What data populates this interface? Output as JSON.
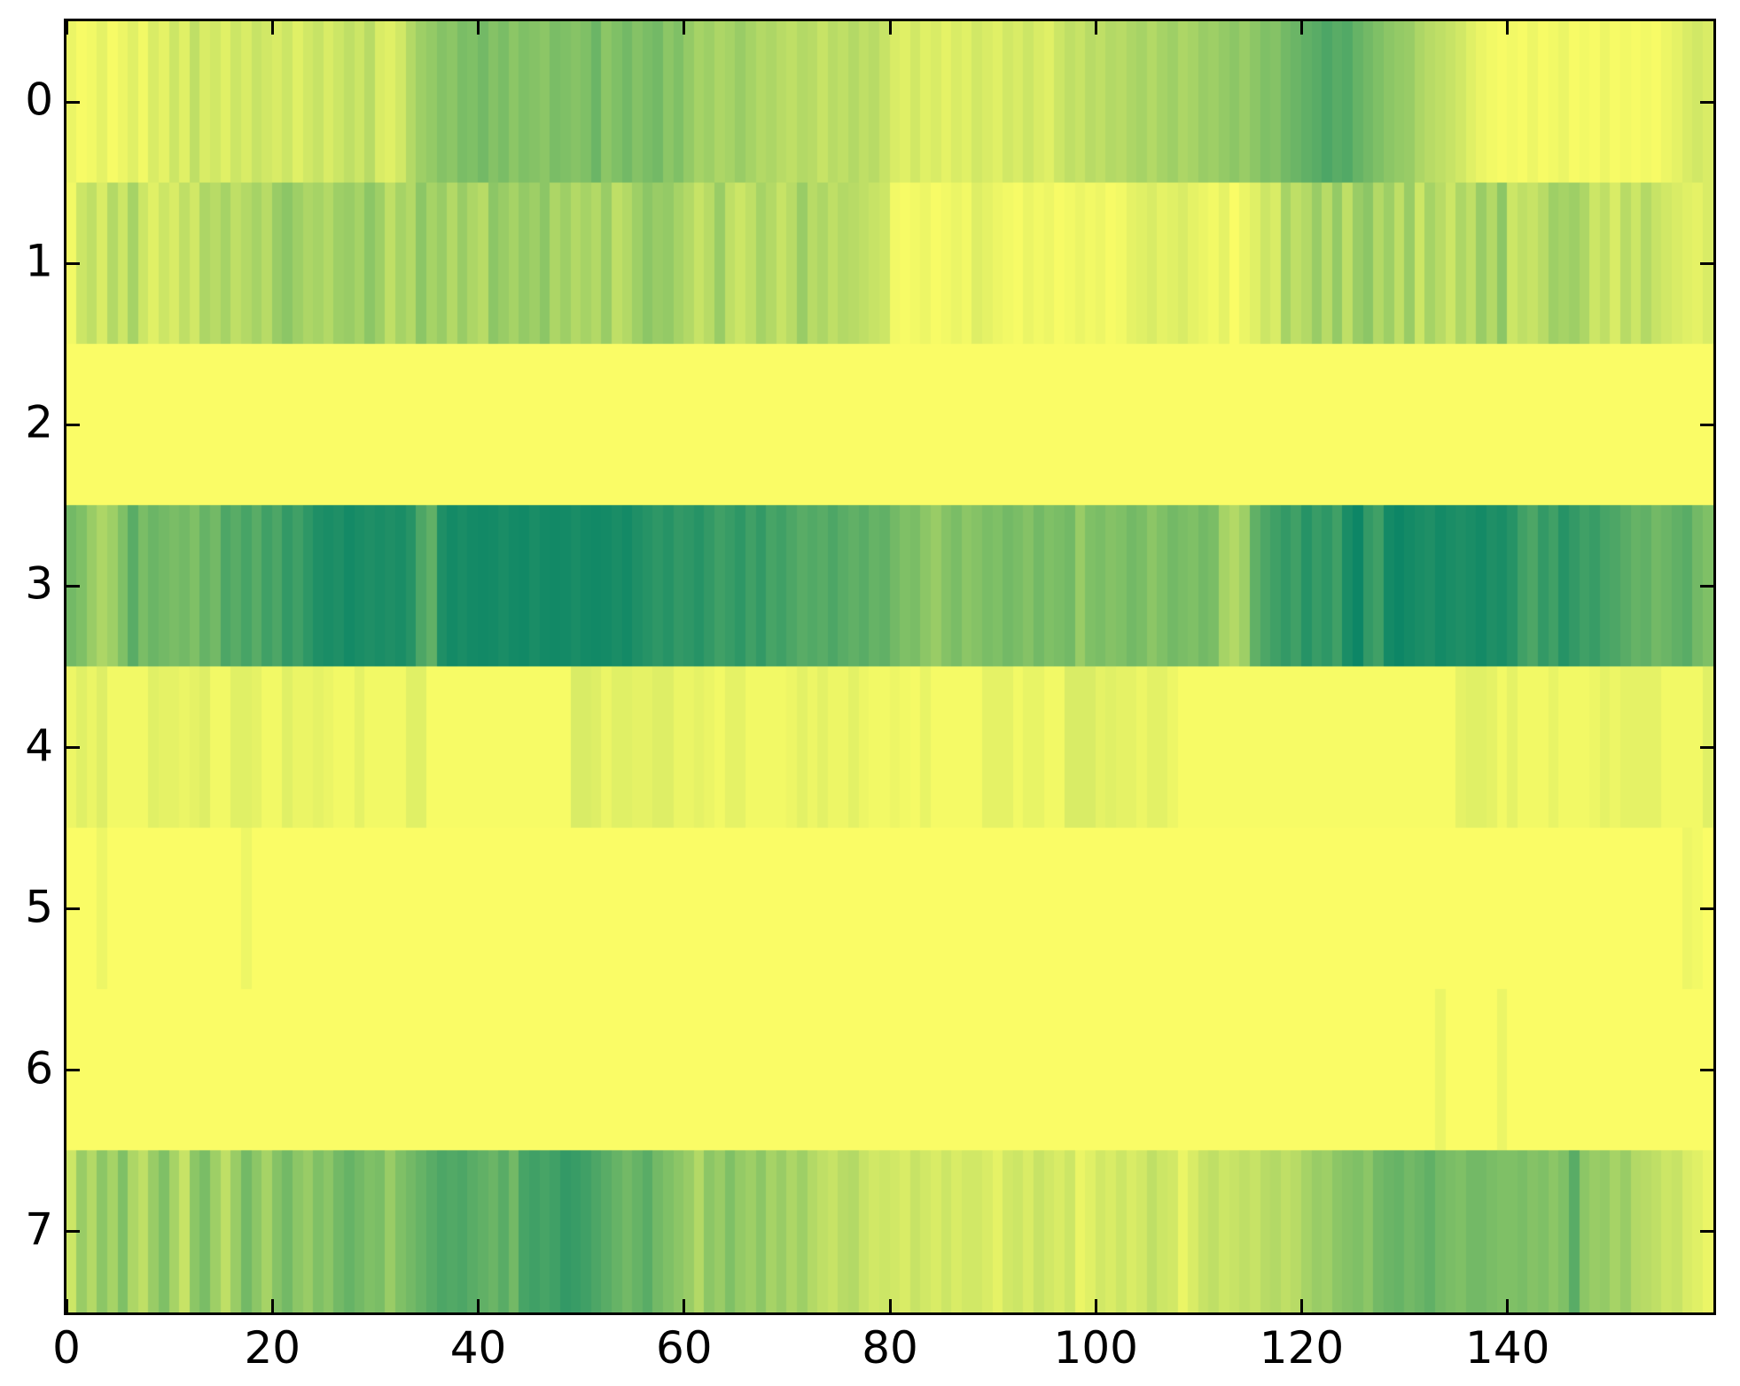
{
  "figure": {
    "background": "#ffffff",
    "axes_edge_color": "#000000",
    "tick_color": "#000000"
  },
  "chart_data": {
    "type": "heatmap",
    "title": "",
    "xlabel": "",
    "ylabel": "",
    "grid": false,
    "legend": "none",
    "rows": 8,
    "cols": 160,
    "x_axis": {
      "range": [
        0,
        160
      ],
      "ticks": [
        0,
        20,
        40,
        60,
        80,
        100,
        120,
        140
      ],
      "tick_labels": [
        "0",
        "20",
        "40",
        "60",
        "80",
        "100",
        "120",
        "140"
      ],
      "tick_direction": "in"
    },
    "y_axis": {
      "range": [
        0,
        8
      ],
      "ticks": [
        0,
        1,
        2,
        3,
        4,
        5,
        6,
        7
      ],
      "tick_labels": [
        "0",
        "1",
        "2",
        "3",
        "4",
        "5",
        "6",
        "7"
      ],
      "tick_direction": "in",
      "row0_at_top": true
    },
    "colormap": {
      "name": "summer",
      "low_value_color": "#008066",
      "high_value_color": "#ffff66",
      "formula": "rgb(round(2.55*v), round(128+1.27*v), 102) for v in 0..100"
    },
    "value_scale": "0 = darkest teal-green, 100 = brightest yellow",
    "values": [
      [
        92,
        97,
        95,
        90,
        97,
        93,
        88,
        95,
        85,
        90,
        80,
        88,
        75,
        85,
        82,
        88,
        80,
        85,
        78,
        82,
        85,
        80,
        88,
        82,
        78,
        85,
        80,
        75,
        80,
        72,
        85,
        88,
        82,
        70,
        62,
        58,
        52,
        55,
        48,
        50,
        45,
        52,
        48,
        55,
        50,
        52,
        55,
        48,
        50,
        53,
        50,
        42,
        55,
        50,
        45,
        52,
        48,
        45,
        55,
        50,
        58,
        65,
        62,
        68,
        65,
        60,
        65,
        70,
        68,
        72,
        75,
        70,
        72,
        78,
        72,
        75,
        70,
        75,
        72,
        78,
        85,
        88,
        82,
        88,
        85,
        90,
        85,
        88,
        82,
        85,
        88,
        82,
        85,
        80,
        85,
        88,
        80,
        75,
        78,
        72,
        75,
        70,
        72,
        68,
        65,
        70,
        65,
        62,
        68,
        65,
        60,
        62,
        58,
        55,
        60,
        55,
        50,
        52,
        45,
        42,
        38,
        35,
        30,
        35,
        32,
        40,
        45,
        50,
        55,
        58,
        60,
        68,
        72,
        75,
        78,
        82,
        88,
        92,
        95,
        97,
        95,
        97,
        93,
        97,
        95,
        92,
        97,
        95,
        97,
        93,
        97,
        95,
        97,
        95,
        97,
        93,
        90,
        85,
        82,
        85
      ],
      [
        95,
        80,
        75,
        85,
        70,
        80,
        65,
        80,
        88,
        80,
        85,
        75,
        82,
        68,
        72,
        65,
        75,
        70,
        65,
        72,
        60,
        55,
        62,
        68,
        65,
        70,
        62,
        60,
        65,
        55,
        62,
        75,
        65,
        70,
        55,
        65,
        60,
        70,
        60,
        68,
        72,
        55,
        60,
        65,
        58,
        62,
        55,
        68,
        62,
        70,
        65,
        70,
        60,
        75,
        70,
        62,
        55,
        60,
        58,
        65,
        70,
        78,
        72,
        60,
        75,
        80,
        75,
        65,
        70,
        78,
        72,
        60,
        72,
        68,
        75,
        70,
        72,
        75,
        78,
        80,
        95,
        97,
        95,
        93,
        97,
        95,
        92,
        95,
        87,
        90,
        93,
        95,
        97,
        92,
        95,
        93,
        97,
        95,
        92,
        95,
        93,
        97,
        95,
        90,
        88,
        85,
        90,
        88,
        85,
        90,
        92,
        95,
        90,
        98,
        92,
        88,
        80,
        85,
        65,
        75,
        70,
        60,
        72,
        58,
        75,
        60,
        55,
        70,
        62,
        75,
        60,
        80,
        65,
        72,
        80,
        68,
        75,
        60,
        70,
        55,
        80,
        75,
        78,
        72,
        62,
        65,
        62,
        68,
        80,
        75,
        85,
        72,
        80,
        70,
        78,
        82,
        85,
        88,
        90,
        85
      ],
      [
        98,
        98,
        98,
        98,
        98,
        98,
        98,
        98,
        98,
        98,
        98,
        98,
        98,
        98,
        98,
        98,
        98,
        98,
        98,
        98,
        98,
        98,
        98,
        98,
        98,
        98,
        98,
        98,
        98,
        98,
        98,
        98,
        98,
        98,
        98,
        98,
        98,
        98,
        98,
        98,
        98,
        98,
        98,
        98,
        98,
        98,
        98,
        98,
        98,
        98,
        98,
        98,
        98,
        98,
        98,
        98,
        98,
        98,
        98,
        98,
        98,
        98,
        98,
        98,
        98,
        98,
        98,
        98,
        98,
        98,
        98,
        98,
        98,
        98,
        98,
        98,
        98,
        98,
        98,
        98,
        98,
        98,
        98,
        98,
        98,
        98,
        98,
        98,
        98,
        98,
        98,
        98,
        98,
        98,
        98,
        98,
        98,
        98,
        98,
        98,
        98,
        98,
        98,
        98,
        98,
        98,
        98,
        98,
        98,
        98,
        98,
        98,
        98,
        98,
        98,
        98,
        98,
        98,
        98,
        98,
        98,
        98,
        98,
        98,
        98,
        98,
        98,
        98,
        98,
        98,
        98,
        98,
        98,
        98,
        98,
        98,
        98,
        98,
        98,
        98,
        98,
        98,
        98,
        98,
        98,
        98,
        98,
        98,
        98,
        98,
        98,
        98,
        98,
        98,
        98,
        98,
        98,
        98,
        98,
        98
      ],
      [
        45,
        50,
        60,
        68,
        62,
        50,
        35,
        48,
        42,
        45,
        48,
        45,
        50,
        40,
        45,
        30,
        35,
        28,
        35,
        25,
        30,
        20,
        25,
        18,
        12,
        10,
        12,
        8,
        10,
        12,
        10,
        12,
        10,
        15,
        30,
        38,
        12,
        8,
        10,
        8,
        7,
        8,
        10,
        8,
        7,
        10,
        8,
        7,
        8,
        10,
        8,
        7,
        8,
        10,
        8,
        12,
        15,
        18,
        15,
        20,
        18,
        15,
        20,
        25,
        22,
        18,
        25,
        20,
        28,
        25,
        30,
        35,
        32,
        35,
        30,
        35,
        38,
        35,
        40,
        38,
        45,
        50,
        48,
        55,
        60,
        52,
        48,
        55,
        52,
        48,
        50,
        45,
        48,
        52,
        45,
        50,
        48,
        45,
        60,
        50,
        48,
        52,
        50,
        45,
        48,
        55,
        50,
        45,
        48,
        50,
        45,
        48,
        65,
        70,
        62,
        38,
        30,
        25,
        20,
        25,
        15,
        22,
        18,
        25,
        10,
        5,
        20,
        25,
        8,
        5,
        8,
        10,
        12,
        8,
        10,
        12,
        10,
        8,
        12,
        10,
        15,
        25,
        30,
        20,
        25,
        15,
        20,
        25,
        22,
        28,
        30,
        35,
        40,
        38,
        45,
        42,
        38,
        35,
        45,
        50
      ],
      [
        93,
        88,
        92,
        87,
        95,
        95,
        95,
        95,
        88,
        90,
        90,
        92,
        90,
        87,
        95,
        95,
        88,
        88,
        90,
        95,
        95,
        88,
        92,
        92,
        90,
        92,
        95,
        95,
        90,
        95,
        95,
        95,
        95,
        88,
        88,
        97,
        97,
        97,
        97,
        97,
        97,
        97,
        97,
        97,
        97,
        97,
        97,
        97,
        97,
        85,
        85,
        87,
        92,
        88,
        88,
        90,
        90,
        87,
        87,
        92,
        92,
        90,
        92,
        95,
        90,
        90,
        95,
        95,
        95,
        95,
        93,
        89,
        93,
        89,
        93,
        93,
        89,
        93,
        95,
        95,
        93,
        95,
        96,
        91,
        96,
        96,
        96,
        96,
        96,
        90,
        90,
        90,
        95,
        91,
        91,
        95,
        95,
        85,
        85,
        85,
        90,
        88,
        90,
        90,
        93,
        89,
        89,
        93,
        97,
        97,
        97,
        97,
        97,
        97,
        97,
        97,
        97,
        97,
        97,
        97,
        97,
        97,
        97,
        97,
        97,
        97,
        97,
        97,
        97,
        97,
        97,
        97,
        97,
        97,
        97,
        90,
        88,
        88,
        90,
        95,
        90,
        95,
        95,
        95,
        91,
        95,
        95,
        95,
        93,
        90,
        93,
        90,
        90,
        90,
        90,
        95,
        95,
        95,
        95,
        88
      ],
      [
        98,
        98,
        98,
        93,
        98,
        98,
        98,
        98,
        98,
        98,
        98,
        98,
        98,
        98,
        98,
        98,
        98,
        93,
        98,
        98,
        98,
        98,
        98,
        98,
        98,
        98,
        98,
        98,
        98,
        98,
        98,
        98,
        98,
        98,
        98,
        98,
        98,
        98,
        98,
        98,
        98,
        98,
        98,
        98,
        98,
        98,
        98,
        98,
        98,
        98,
        98,
        98,
        98,
        98,
        98,
        98,
        98,
        98,
        98,
        98,
        98,
        98,
        98,
        98,
        98,
        98,
        98,
        98,
        98,
        98,
        98,
        98,
        98,
        98,
        98,
        98,
        98,
        98,
        98,
        98,
        98,
        98,
        98,
        98,
        98,
        98,
        98,
        98,
        98,
        98,
        98,
        98,
        98,
        98,
        98,
        98,
        98,
        98,
        98,
        98,
        98,
        98,
        98,
        98,
        98,
        98,
        98,
        98,
        98,
        98,
        98,
        98,
        98,
        98,
        98,
        98,
        98,
        98,
        98,
        98,
        98,
        98,
        98,
        98,
        98,
        98,
        98,
        98,
        98,
        98,
        98,
        98,
        98,
        98,
        98,
        98,
        98,
        98,
        98,
        98,
        98,
        98,
        98,
        98,
        98,
        98,
        98,
        98,
        98,
        98,
        98,
        98,
        98,
        98,
        98,
        98,
        98,
        93,
        95,
        98
      ],
      [
        98,
        98,
        98,
        98,
        98,
        98,
        98,
        98,
        98,
        98,
        98,
        98,
        98,
        98,
        98,
        98,
        98,
        98,
        98,
        98,
        98,
        98,
        98,
        98,
        98,
        98,
        98,
        98,
        98,
        98,
        98,
        98,
        98,
        98,
        98,
        98,
        98,
        98,
        98,
        98,
        98,
        98,
        98,
        98,
        98,
        98,
        98,
        98,
        98,
        98,
        98,
        98,
        98,
        98,
        98,
        98,
        98,
        98,
        98,
        98,
        98,
        98,
        98,
        98,
        98,
        98,
        98,
        98,
        98,
        98,
        98,
        98,
        98,
        98,
        98,
        98,
        98,
        98,
        98,
        98,
        98,
        98,
        98,
        98,
        98,
        98,
        98,
        98,
        98,
        98,
        98,
        98,
        98,
        98,
        98,
        98,
        98,
        98,
        98,
        98,
        98,
        98,
        98,
        98,
        98,
        98,
        98,
        98,
        98,
        98,
        98,
        98,
        98,
        98,
        98,
        98,
        98,
        98,
        98,
        98,
        98,
        98,
        98,
        98,
        98,
        98,
        98,
        98,
        98,
        98,
        98,
        98,
        98,
        92,
        98,
        98,
        98,
        98,
        98,
        92,
        98,
        98,
        98,
        98,
        98,
        98,
        98,
        98,
        98,
        98,
        98,
        98,
        98,
        98,
        98,
        98,
        98,
        98,
        98,
        98
      ],
      [
        80,
        60,
        70,
        55,
        65,
        50,
        68,
        75,
        60,
        50,
        65,
        78,
        55,
        48,
        62,
        75,
        60,
        45,
        55,
        65,
        52,
        45,
        55,
        60,
        50,
        55,
        45,
        40,
        45,
        50,
        48,
        60,
        50,
        45,
        40,
        35,
        30,
        32,
        30,
        35,
        38,
        42,
        35,
        45,
        28,
        25,
        28,
        25,
        20,
        22,
        25,
        30,
        35,
        40,
        45,
        40,
        35,
        45,
        50,
        55,
        60,
        70,
        55,
        60,
        50,
        58,
        62,
        55,
        65,
        60,
        68,
        62,
        70,
        75,
        78,
        72,
        70,
        78,
        82,
        80,
        82,
        85,
        78,
        82,
        85,
        80,
        85,
        82,
        82,
        85,
        90,
        82,
        80,
        85,
        78,
        82,
        85,
        80,
        92,
        88,
        82,
        85,
        80,
        85,
        82,
        75,
        80,
        82,
        92,
        85,
        78,
        75,
        80,
        78,
        75,
        78,
        72,
        70,
        75,
        72,
        65,
        60,
        62,
        55,
        52,
        50,
        55,
        45,
        42,
        40,
        45,
        42,
        38,
        45,
        48,
        50,
        45,
        45,
        48,
        50,
        50,
        48,
        52,
        50,
        55,
        50,
        35,
        55,
        60,
        58,
        65,
        60,
        70,
        72,
        75,
        80,
        78,
        85,
        88,
        92
      ]
    ]
  }
}
